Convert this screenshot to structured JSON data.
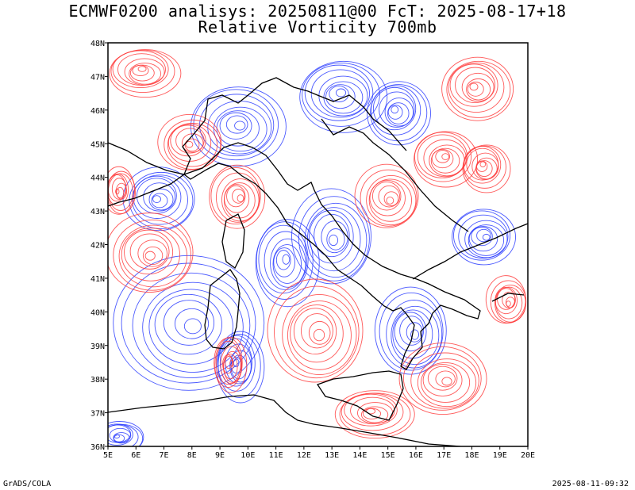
{
  "header": {
    "title_line1": "ECMWF0200 analisys: 20250811@00 FcT: 2025-08-17+18",
    "title_line2": "Relative Vorticity 700mb"
  },
  "map": {
    "lon_labels": [
      "5E",
      "6E",
      "7E",
      "8E",
      "9E",
      "10E",
      "11E",
      "12E",
      "13E",
      "14E",
      "15E",
      "16E",
      "17E",
      "18E",
      "19E",
      "20E"
    ],
    "lat_labels": [
      "36N",
      "37N",
      "38N",
      "39N",
      "40N",
      "41N",
      "42N",
      "43N",
      "44N",
      "45N",
      "46N",
      "47N",
      "48N"
    ],
    "colors": {
      "positive_vorticity": "#ff3b3b",
      "negative_vorticity": "#2a3cff",
      "coastline": "#000000",
      "grid": "#999999"
    }
  },
  "footer": {
    "left": "GrADS/COLA",
    "right": "2025-08-11-09:32"
  }
}
